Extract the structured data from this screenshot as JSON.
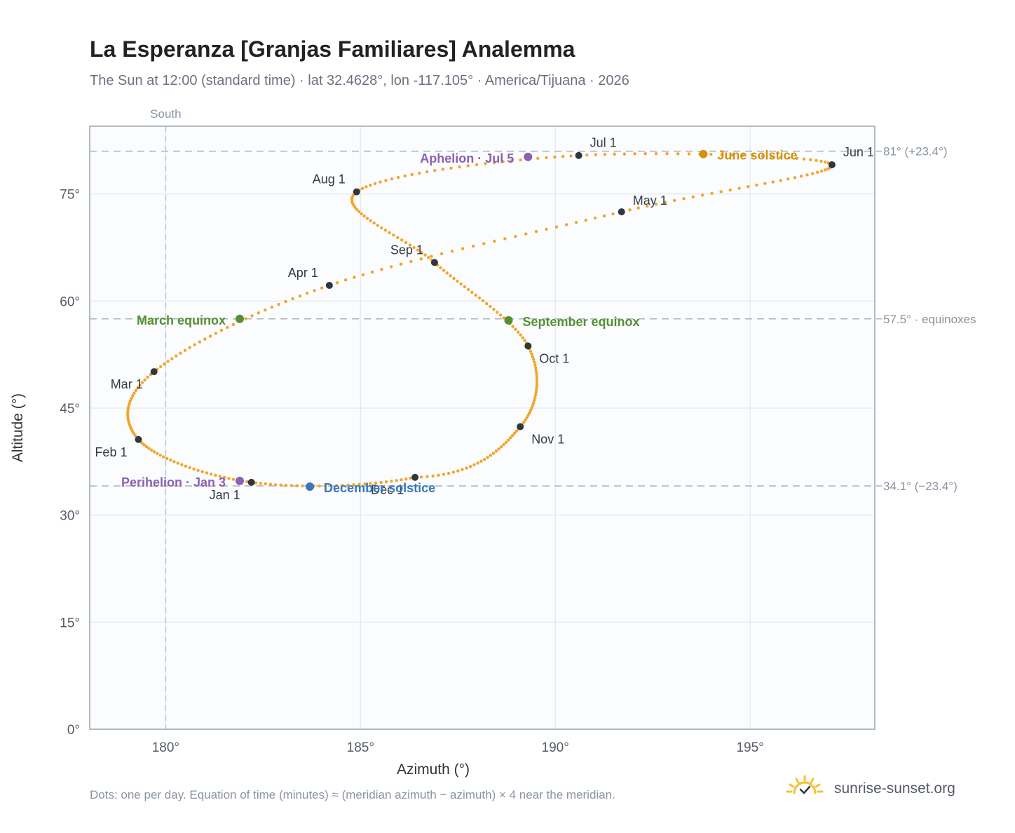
{
  "header": {
    "title": "La Esperanza [Granjas Familiares] Analemma",
    "subtitle": "The Sun at 12:00 (standard time) · lat 32.4628°, lon -117.105° · America/Tijuana · 2026"
  },
  "footer": {
    "note": "Dots: one per day. Equation of time (minutes) ≈ (meridian azimuth − azimuth) × 4 near the meridian.",
    "brand": "sunrise-sunset.org"
  },
  "chart_data": {
    "type": "scatter",
    "xlabel": "Azimuth (°)",
    "ylabel": "Altitude (°)",
    "xlim": [
      178.05,
      198.2
    ],
    "ylim": [
      0,
      84.5
    ],
    "x_ticks": [
      180,
      185,
      190,
      195
    ],
    "x_tick_labels": [
      "180°",
      "185°",
      "190°",
      "195°"
    ],
    "y_ticks": [
      0,
      15,
      30,
      45,
      60,
      75
    ],
    "y_tick_labels": [
      "0°",
      "15°",
      "30°",
      "45°",
      "60°",
      "75°"
    ],
    "grid": true,
    "colors": {
      "path": "#f2a52b",
      "month_marker": "#2f3640",
      "equinox": "#559033",
      "june_solstice": "#d4910f",
      "december_solstice": "#3a78b8",
      "apsis": "#8a62b0",
      "reference_line": "#aab3bd",
      "background": "#fafcfe"
    },
    "reference_lines": {
      "south": {
        "x": 180,
        "label": "South"
      },
      "horizontal": [
        {
          "y": 81.0,
          "label": "81° (+23.4°)"
        },
        {
          "y": 57.5,
          "label": "57.5° · equinoxes"
        },
        {
          "y": 34.1,
          "label": "34.1° (−23.4°)"
        }
      ]
    },
    "month_markers": [
      {
        "label": "Jan 1",
        "az": 182.2,
        "alt": 34.6
      },
      {
        "label": "Feb 1",
        "az": 179.3,
        "alt": 40.6
      },
      {
        "label": "Mar 1",
        "az": 179.7,
        "alt": 50.1
      },
      {
        "label": "Apr 1",
        "az": 184.2,
        "alt": 62.2
      },
      {
        "label": "May 1",
        "az": 191.7,
        "alt": 72.5
      },
      {
        "label": "Jun 1",
        "az": 197.1,
        "alt": 79.1
      },
      {
        "label": "Jul 1",
        "az": 190.6,
        "alt": 80.4
      },
      {
        "label": "Aug 1",
        "az": 184.9,
        "alt": 75.3
      },
      {
        "label": "Sep 1",
        "az": 186.9,
        "alt": 65.4
      },
      {
        "label": "Oct 1",
        "az": 189.3,
        "alt": 53.7
      },
      {
        "label": "Nov 1",
        "az": 189.1,
        "alt": 42.4
      },
      {
        "label": "Dec 1",
        "az": 186.4,
        "alt": 35.3
      }
    ],
    "events": [
      {
        "label": "March equinox",
        "az": 181.9,
        "alt": 57.5,
        "kind": "equinox"
      },
      {
        "label": "September equinox",
        "az": 188.8,
        "alt": 57.3,
        "kind": "equinox"
      },
      {
        "label": "June solstice",
        "az": 193.8,
        "alt": 80.6,
        "kind": "june_solstice"
      },
      {
        "label": "December solstice",
        "az": 183.7,
        "alt": 34.0,
        "kind": "december_solstice"
      },
      {
        "label": "Perihelion · Jan 3",
        "az": 181.9,
        "alt": 34.8,
        "kind": "apsis"
      },
      {
        "label": "Aphelion · Jul 5",
        "az": 189.3,
        "alt": 80.2,
        "kind": "apsis"
      }
    ]
  }
}
